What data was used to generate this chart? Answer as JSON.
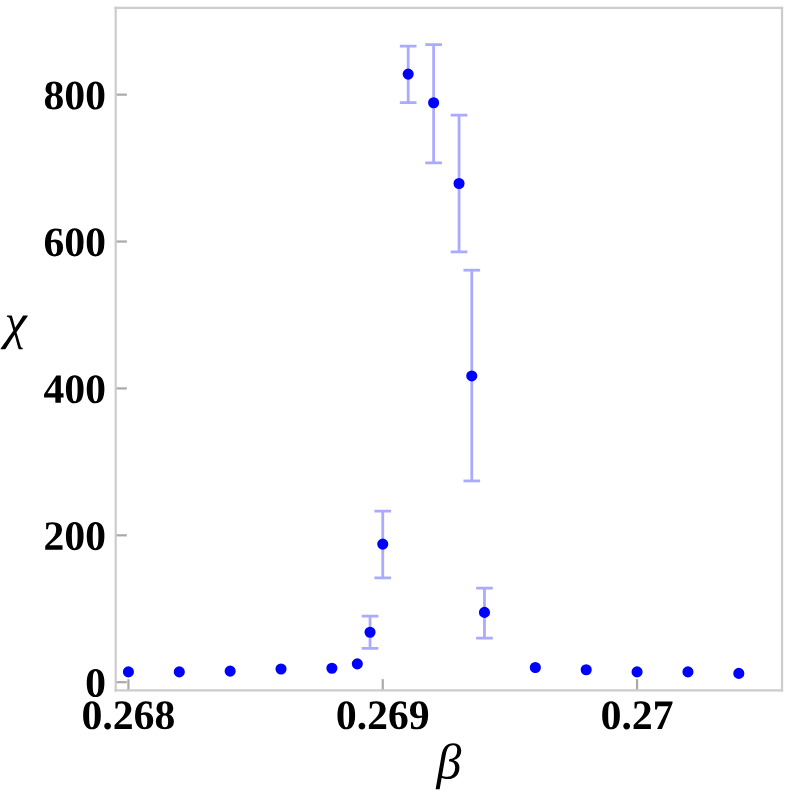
{
  "chart_data": {
    "type": "scatter",
    "xlabel": "β",
    "ylabel": "χ",
    "x": [
      0.268,
      0.2682,
      0.2684,
      0.2686,
      0.2688,
      0.2689,
      0.26895,
      0.269,
      0.2691,
      0.2692,
      0.2693,
      0.26935,
      0.2694,
      0.2696,
      0.2698,
      0.27,
      0.2702,
      0.2704
    ],
    "series": [
      {
        "color": "#0000ff",
        "values": [
          14,
          14,
          15,
          18,
          19,
          25,
          68,
          188,
          828,
          789,
          679,
          417,
          95,
          20,
          17,
          14,
          14,
          12
        ],
        "errors": [
          null,
          null,
          null,
          null,
          null,
          null,
          [
            46,
            90
          ],
          [
            142,
            233
          ],
          [
            789,
            866
          ],
          [
            707,
            868
          ],
          [
            586,
            772
          ],
          [
            274,
            561
          ],
          [
            60,
            128
          ],
          null,
          null,
          null,
          null,
          null
        ]
      }
    ],
    "marker": "circle",
    "xlim": [
      0.26795,
      0.27057
    ],
    "ylim": [
      -11,
      918
    ],
    "xticks": [
      {
        "value": 0.268,
        "label": "0.268"
      },
      {
        "value": 0.269,
        "label": "0.269"
      },
      {
        "value": 0.27,
        "label": "0.27"
      }
    ],
    "yticks": [
      0,
      200,
      400,
      600,
      800
    ],
    "grid": false
  }
}
